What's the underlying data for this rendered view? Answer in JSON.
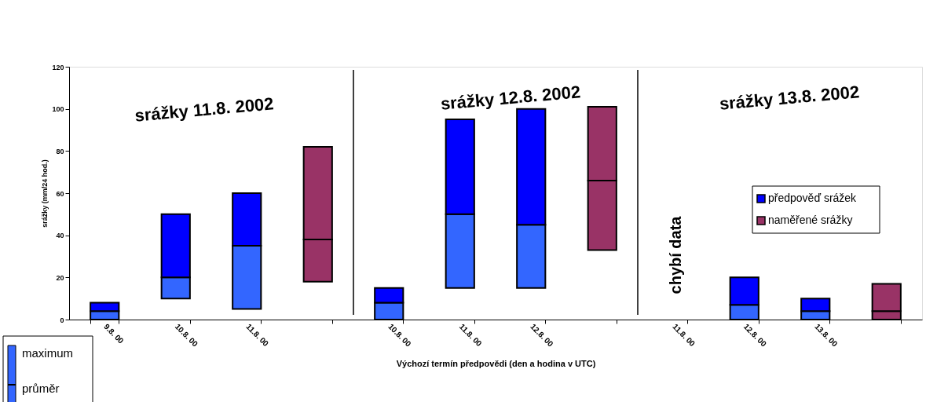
{
  "chart_data": {
    "type": "bar",
    "categories": [
      "9.8. 00",
      "10.8. 00",
      "11.8. 00",
      null,
      "10.8. 00",
      "11.8. 00",
      "12.8. 00",
      null,
      "11.8. 00",
      "12.8. 00",
      "13.8. 00",
      null
    ],
    "series": [
      {
        "color": "#3366ff",
        "base": [
          0,
          10,
          5,
          null,
          0,
          15,
          15,
          null,
          null,
          0,
          0,
          null
        ],
        "values": [
          4,
          10,
          30,
          null,
          8,
          35,
          30,
          null,
          null,
          7,
          4,
          null
        ]
      },
      {
        "name": "předpověď srážek",
        "color": "#0000ff",
        "base": [
          4,
          20,
          35,
          null,
          8,
          50,
          45,
          null,
          null,
          7,
          4,
          null
        ],
        "values": [
          4,
          30,
          25,
          null,
          7,
          45,
          55,
          null,
          null,
          13,
          6,
          null
        ]
      },
      {
        "color": "#993366",
        "base": [
          null,
          null,
          null,
          18,
          null,
          null,
          null,
          33,
          null,
          null,
          null,
          0
        ],
        "values": [
          null,
          null,
          null,
          20,
          null,
          null,
          null,
          33,
          null,
          null,
          null,
          4
        ]
      },
      {
        "name": "naměřené srážky",
        "color": "#993366",
        "base": [
          null,
          null,
          null,
          38,
          null,
          null,
          null,
          66,
          null,
          null,
          null,
          4
        ],
        "values": [
          null,
          null,
          null,
          44,
          null,
          null,
          null,
          35,
          null,
          null,
          null,
          13
        ]
      }
    ],
    "xlabel": "Výchozí termín předpovědi (den a hodina v UTC)",
    "ylabel": "srážky (mm/24 hod.)",
    "ylim": [
      0,
      120
    ],
    "yticks": [
      0,
      20,
      40,
      60,
      80,
      100,
      120
    ],
    "grid": false,
    "legend": "right",
    "annotations": [
      "srážky 11.8. 2002",
      "srážky 12.8. 2002",
      "srážky 13.8. 2002",
      "chybí data",
      "maximum",
      "průměr"
    ]
  }
}
